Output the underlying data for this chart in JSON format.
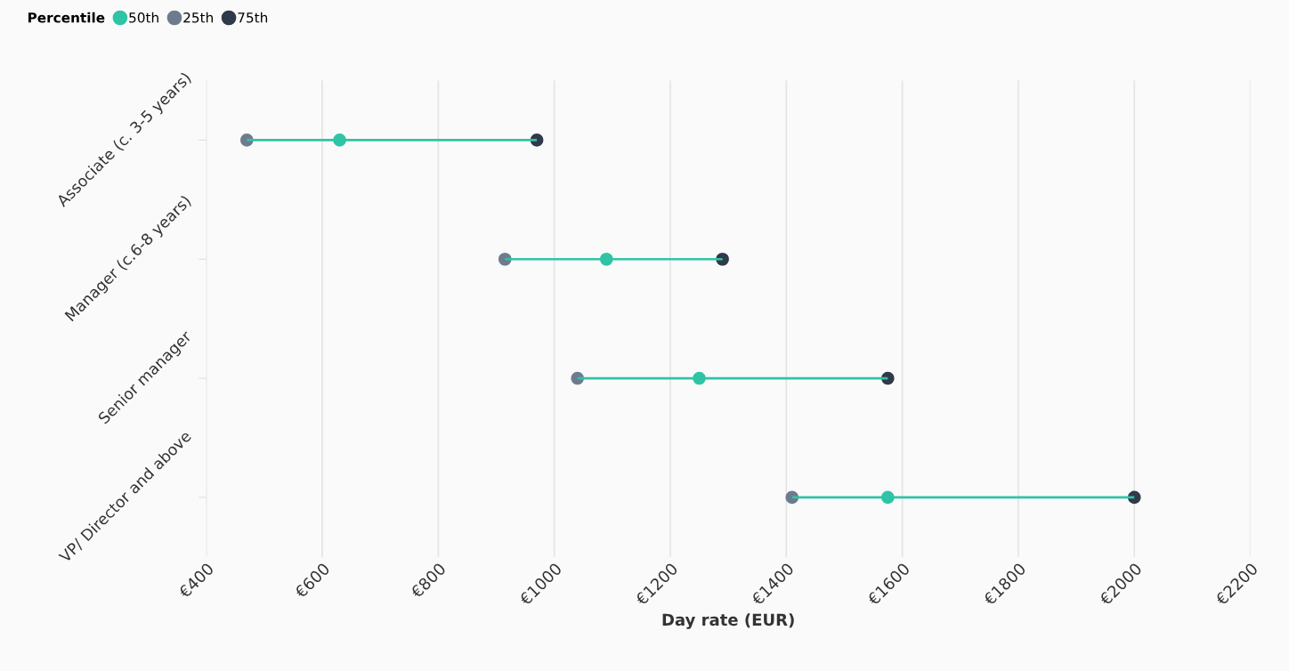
{
  "chart_data": {
    "type": "scatter",
    "orientation": "horizontal",
    "xlabel": "Day rate (EUR)",
    "legend_title": "Percentile",
    "legend": "top left",
    "grid": "x",
    "marker": "circle",
    "categories": [
      "Associate (c. 3-5 years)",
      "Manager (c.6-8 years)",
      "Senior manager",
      "VP/ Director and above"
    ],
    "xlim": [
      400,
      2200
    ],
    "xticks": [
      {
        "value": 400,
        "label": "€400"
      },
      {
        "value": 600,
        "label": "€600"
      },
      {
        "value": 800,
        "label": "€800"
      },
      {
        "value": 1000,
        "label": "€1000"
      },
      {
        "value": 1200,
        "label": "€1200"
      },
      {
        "value": 1400,
        "label": "€1400"
      },
      {
        "value": 1600,
        "label": "€1600"
      },
      {
        "value": 1800,
        "label": "€1800"
      },
      {
        "value": 2000,
        "label": "€2000"
      },
      {
        "value": 2200,
        "label": "€2200"
      }
    ],
    "series": [
      {
        "type": "bar",
        "color": "#2ec4a5",
        "base": [
          470,
          915,
          1040,
          1410
        ],
        "values": [
          500,
          375,
          535,
          590
        ]
      },
      {
        "name": "50th",
        "color": "#2ec4a5",
        "values": [
          630,
          1090,
          1250,
          1575
        ]
      },
      {
        "name": "25th",
        "color": "#6e7b8f",
        "values": [
          470,
          915,
          1040,
          1410
        ]
      },
      {
        "name": "75th",
        "color": "#2f3a4a",
        "values": [
          970,
          1290,
          1575,
          2000
        ]
      }
    ]
  }
}
